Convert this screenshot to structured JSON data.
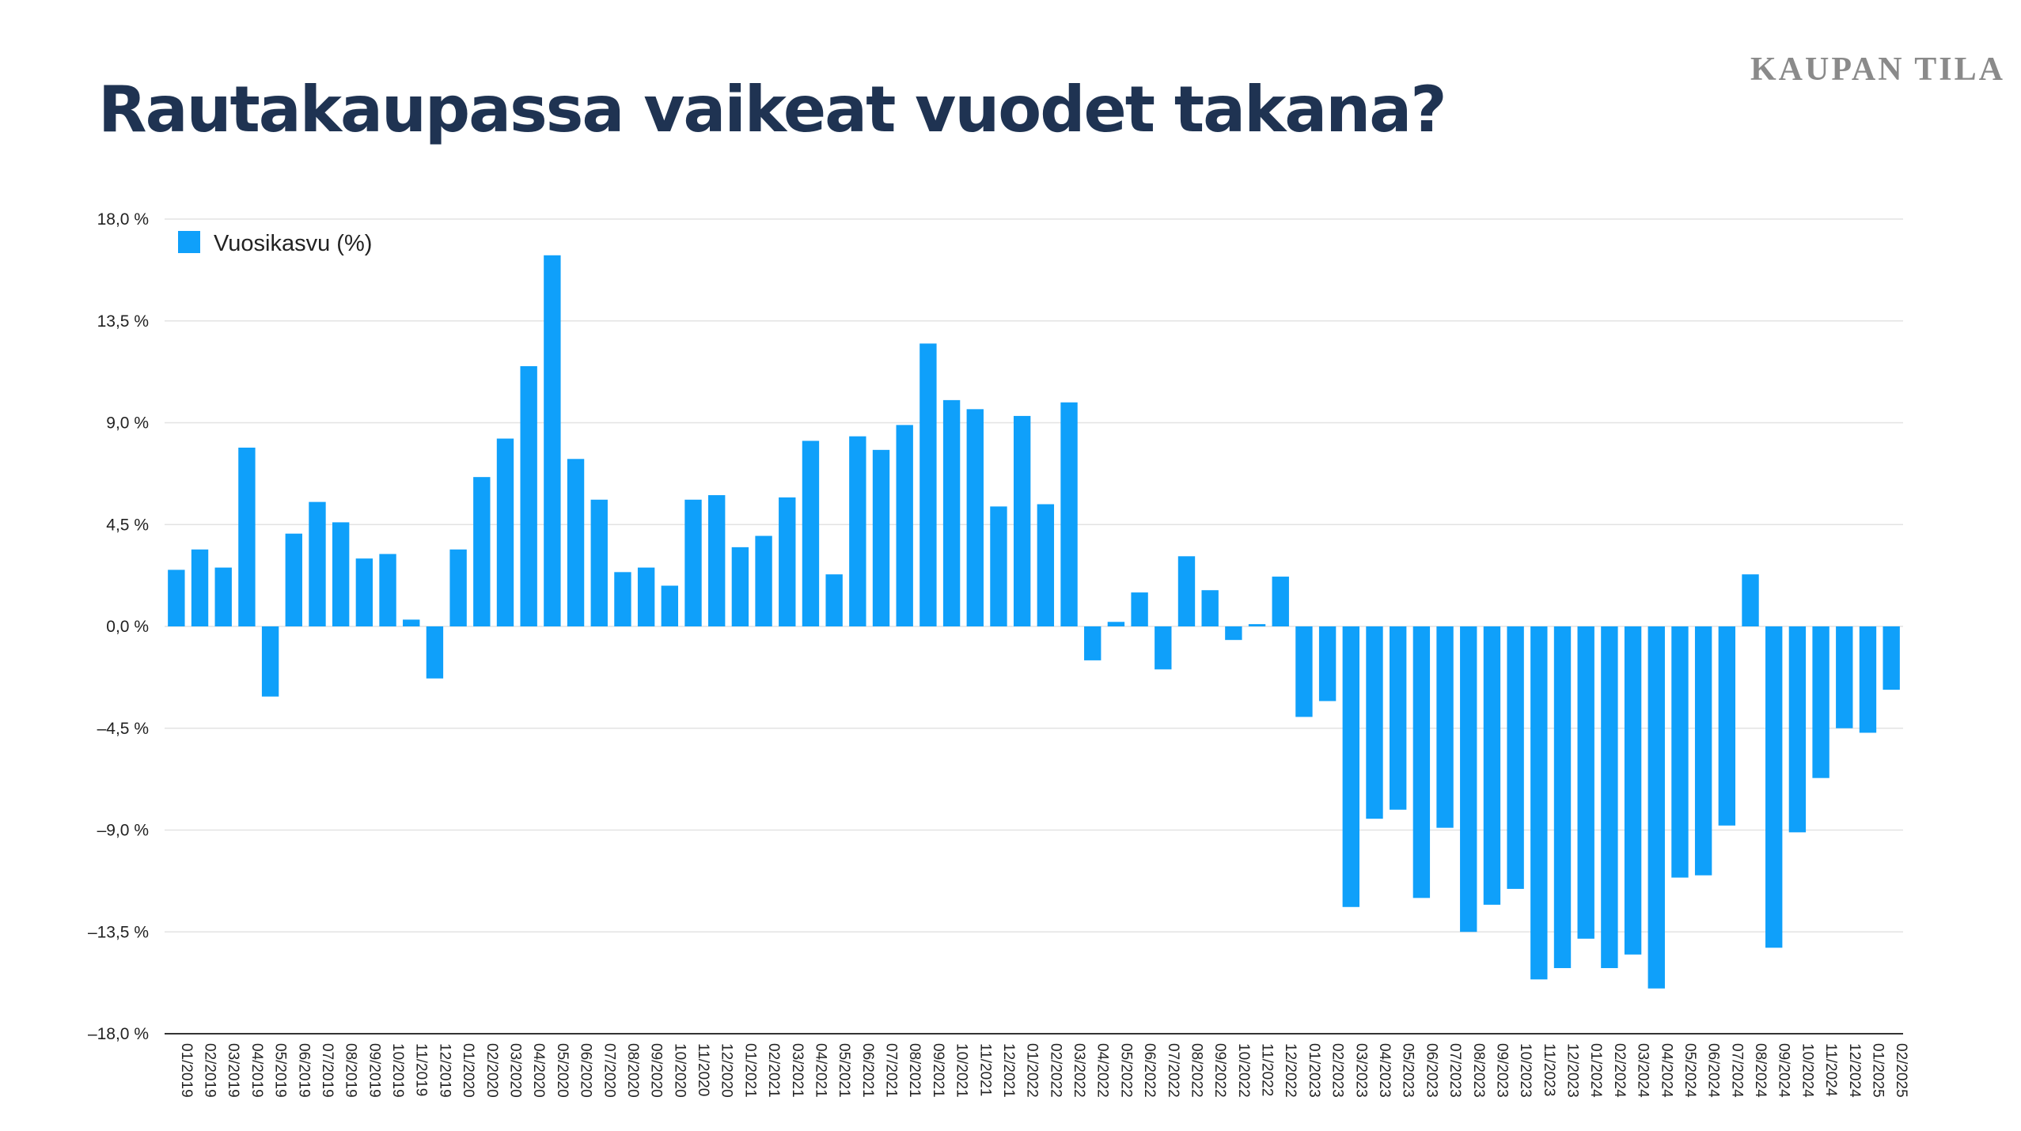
{
  "brand": "KAUPAN TILA",
  "title": "Rautakaupassa vaikeat vuodet takana?",
  "colors": {
    "bar": "#0fa0fa",
    "title": "#1f3352",
    "grid": "#e3e3e3"
  },
  "chart_data": {
    "type": "bar",
    "legend": {
      "label": "Vuosikasvu (%)",
      "position": "top-left"
    },
    "ylim": [
      -18,
      18
    ],
    "yticks": [
      18,
      13.5,
      9,
      4.5,
      0,
      -4.5,
      -9,
      -13.5,
      -18
    ],
    "ytick_labels": [
      "18,0 %",
      "13,5 %",
      "9,0 %",
      "4,5 %",
      "0,0 %",
      "–4,5 %",
      "–9,0 %",
      "–13,5 %",
      "–18,0 %"
    ],
    "grid": true,
    "categories": [
      "01/2019",
      "02/2019",
      "03/2019",
      "04/2019",
      "05/2019",
      "06/2019",
      "07/2019",
      "08/2019",
      "09/2019",
      "10/2019",
      "11/2019",
      "12/2019",
      "01/2020",
      "02/2020",
      "03/2020",
      "04/2020",
      "05/2020",
      "06/2020",
      "07/2020",
      "08/2020",
      "09/2020",
      "10/2020",
      "11/2020",
      "12/2020",
      "01/2021",
      "02/2021",
      "03/2021",
      "04/2021",
      "05/2021",
      "06/2021",
      "07/2021",
      "08/2021",
      "09/2021",
      "10/2021",
      "11/2021",
      "12/2021",
      "01/2022",
      "02/2022",
      "03/2022",
      "04/2022",
      "05/2022",
      "06/2022",
      "07/2022",
      "08/2022",
      "09/2022",
      "10/2022",
      "11/2022",
      "12/2022",
      "01/2023",
      "02/2023",
      "03/2023",
      "04/2023",
      "05/2023",
      "06/2023",
      "07/2023",
      "08/2023",
      "09/2023",
      "10/2023",
      "11/2023",
      "12/2023",
      "01/2024",
      "02/2024",
      "03/2024",
      "04/2024",
      "05/2024",
      "06/2024",
      "07/2024",
      "08/2024",
      "09/2024",
      "10/2024",
      "11/2024",
      "12/2024",
      "01/2025",
      "02/2025"
    ],
    "values": [
      2.5,
      3.4,
      2.6,
      7.9,
      -3.1,
      4.1,
      5.5,
      4.6,
      3.0,
      3.2,
      0.3,
      -2.3,
      3.4,
      6.6,
      8.3,
      11.5,
      16.4,
      7.4,
      5.6,
      2.4,
      2.6,
      1.8,
      5.6,
      5.8,
      3.5,
      4.0,
      5.7,
      8.2,
      2.3,
      8.4,
      7.8,
      8.9,
      12.5,
      10.0,
      9.6,
      5.3,
      9.3,
      5.4,
      9.9,
      -1.5,
      0.2,
      1.5,
      -1.9,
      3.1,
      1.6,
      -0.6,
      0.1,
      2.2,
      -4.0,
      -3.3,
      -12.4,
      -8.5,
      -8.1,
      -12.0,
      -8.9,
      -13.5,
      -12.3,
      -11.6,
      -15.6,
      -15.1,
      -13.8,
      -15.1,
      -14.5,
      -16.0,
      -11.1,
      -11.0,
      -8.8,
      2.3,
      -14.2,
      -9.1,
      -6.7,
      -4.5,
      -4.7,
      -2.8
    ]
  }
}
